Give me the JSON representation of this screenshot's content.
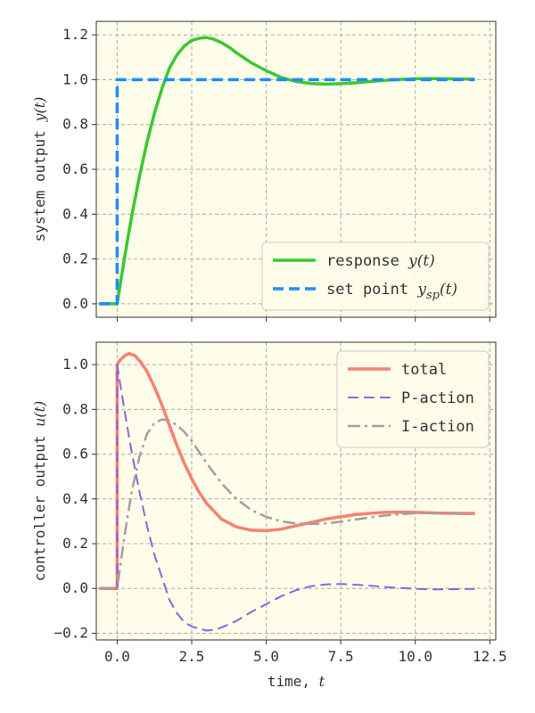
{
  "chart_data": [
    {
      "type": "line",
      "xlim": [
        -0.7,
        12.7
      ],
      "ylim": [
        -0.06,
        1.26
      ],
      "xticks": [
        0.0,
        2.5,
        5.0,
        7.5,
        10.0,
        12.5
      ],
      "xtick_labels": [
        "",
        "",
        "",
        "",
        "",
        ""
      ],
      "yticks": [
        0.0,
        0.2,
        0.4,
        0.6,
        0.8,
        1.0,
        1.2
      ],
      "ytick_labels": [
        "0.0",
        "0.2",
        "0.4",
        "0.6",
        "0.8",
        "1.0",
        "1.2"
      ],
      "ylabel_text": "system output ",
      "ylabel_math": "y(t)",
      "background": "#fdfdea",
      "grid": true,
      "legend": {
        "position": "lower-right"
      },
      "series": [
        {
          "key": "response",
          "name": "response ",
          "name_math": "y(t)",
          "color": "#3cc832",
          "dash": "solid",
          "width": 3.5,
          "x": [
            -0.6,
            -0.3,
            0.0,
            0.25,
            0.5,
            0.75,
            1.0,
            1.25,
            1.5,
            1.75,
            2.0,
            2.25,
            2.5,
            2.75,
            3.0,
            3.25,
            3.5,
            3.75,
            4.0,
            4.5,
            5.0,
            5.5,
            6.0,
            6.5,
            7.0,
            7.5,
            8.0,
            8.5,
            9.0,
            9.5,
            10.0,
            10.5,
            11.0,
            11.5,
            12.0
          ],
          "y": [
            0.0,
            0.0,
            0.0,
            0.21,
            0.4,
            0.57,
            0.72,
            0.85,
            0.96,
            1.05,
            1.11,
            1.15,
            1.175,
            1.185,
            1.188,
            1.18,
            1.165,
            1.145,
            1.12,
            1.075,
            1.04,
            1.01,
            0.992,
            0.983,
            0.98,
            0.982,
            0.986,
            0.992,
            0.997,
            1.001,
            1.004,
            1.005,
            1.004,
            1.003,
            1.002
          ]
        },
        {
          "key": "setpoint",
          "name": "set point ",
          "name_math": "ysp(t)",
          "color": "#1e8cff",
          "dash": "dashed",
          "width": 3.5,
          "x": [
            -0.6,
            0.0,
            0.0,
            12.0
          ],
          "y": [
            0.0,
            0.0,
            1.0,
            1.0
          ]
        }
      ]
    },
    {
      "type": "line",
      "xlim": [
        -0.7,
        12.7
      ],
      "ylim": [
        -0.23,
        1.1
      ],
      "xticks": [
        0.0,
        2.5,
        5.0,
        7.5,
        10.0,
        12.5
      ],
      "xtick_labels": [
        "0.0",
        "2.5",
        "5.0",
        "7.5",
        "10.0",
        "12.5"
      ],
      "yticks": [
        -0.2,
        0.0,
        0.2,
        0.4,
        0.6,
        0.8,
        1.0
      ],
      "ytick_labels": [
        "−0.2",
        "0.0",
        "0.2",
        "0.4",
        "0.6",
        "0.8",
        "1.0"
      ],
      "xlabel_text": "time, ",
      "xlabel_math": "t",
      "ylabel_text": "controller output ",
      "ylabel_math": "u(t)",
      "background": "#fdfdea",
      "grid": true,
      "legend": {
        "position": "upper-right"
      },
      "series": [
        {
          "key": "total",
          "name": "total",
          "color": "#fa8072",
          "dash": "solid",
          "width": 3.5,
          "x": [
            -0.6,
            -0.3,
            0.0,
            0.0,
            0.1,
            0.25,
            0.4,
            0.6,
            0.8,
            1.0,
            1.25,
            1.5,
            1.75,
            2.0,
            2.25,
            2.5,
            2.75,
            3.0,
            3.5,
            4.0,
            4.5,
            5.0,
            5.5,
            6.0,
            6.5,
            7.0,
            7.5,
            8.0,
            8.5,
            9.0,
            9.5,
            10.0,
            10.5,
            11.0,
            11.5,
            12.0
          ],
          "y": [
            0.0,
            0.0,
            0.0,
            1.0,
            1.02,
            1.04,
            1.05,
            1.04,
            1.01,
            0.97,
            0.9,
            0.82,
            0.73,
            0.64,
            0.56,
            0.49,
            0.43,
            0.38,
            0.31,
            0.275,
            0.26,
            0.258,
            0.265,
            0.28,
            0.295,
            0.31,
            0.32,
            0.33,
            0.336,
            0.34,
            0.341,
            0.34,
            0.338,
            0.336,
            0.335,
            0.335
          ]
        },
        {
          "key": "p_action",
          "name": "P-action",
          "color": "#8c64dc",
          "dash": "dashed",
          "width": 2,
          "x": [
            -0.6,
            -0.3,
            0.0,
            0.0,
            0.25,
            0.5,
            0.75,
            1.0,
            1.25,
            1.5,
            1.75,
            2.0,
            2.25,
            2.5,
            2.75,
            3.0,
            3.25,
            3.5,
            3.75,
            4.0,
            4.5,
            5.0,
            5.5,
            6.0,
            6.5,
            7.0,
            7.5,
            8.0,
            8.5,
            9.0,
            9.5,
            10.0,
            10.5,
            11.0,
            11.5,
            12.0
          ],
          "y": [
            0.0,
            0.0,
            0.0,
            1.0,
            0.79,
            0.6,
            0.43,
            0.28,
            0.15,
            0.05,
            -0.05,
            -0.11,
            -0.15,
            -0.17,
            -0.18,
            -0.188,
            -0.185,
            -0.175,
            -0.16,
            -0.145,
            -0.105,
            -0.07,
            -0.035,
            -0.008,
            0.01,
            0.018,
            0.02,
            0.017,
            0.012,
            0.006,
            0.002,
            -0.002,
            -0.004,
            -0.004,
            -0.003,
            -0.002
          ]
        },
        {
          "key": "i_action",
          "name": "I-action",
          "color": "#a0a0a0",
          "dash": "dashdot",
          "width": 2.5,
          "x": [
            -0.6,
            -0.3,
            0.0,
            0.25,
            0.5,
            0.75,
            1.0,
            1.25,
            1.5,
            1.75,
            2.0,
            2.25,
            2.5,
            2.75,
            3.0,
            3.5,
            4.0,
            4.5,
            5.0,
            5.5,
            6.0,
            6.5,
            7.0,
            7.5,
            8.0,
            8.5,
            9.0,
            9.5,
            10.0,
            10.5,
            11.0,
            11.5,
            12.0
          ],
          "y": [
            0.0,
            0.0,
            0.0,
            0.24,
            0.44,
            0.59,
            0.69,
            0.74,
            0.755,
            0.75,
            0.73,
            0.7,
            0.66,
            0.61,
            0.56,
            0.47,
            0.4,
            0.35,
            0.32,
            0.3,
            0.29,
            0.288,
            0.29,
            0.298,
            0.308,
            0.318,
            0.326,
            0.332,
            0.336,
            0.338,
            0.338,
            0.337,
            0.337
          ]
        }
      ]
    }
  ]
}
